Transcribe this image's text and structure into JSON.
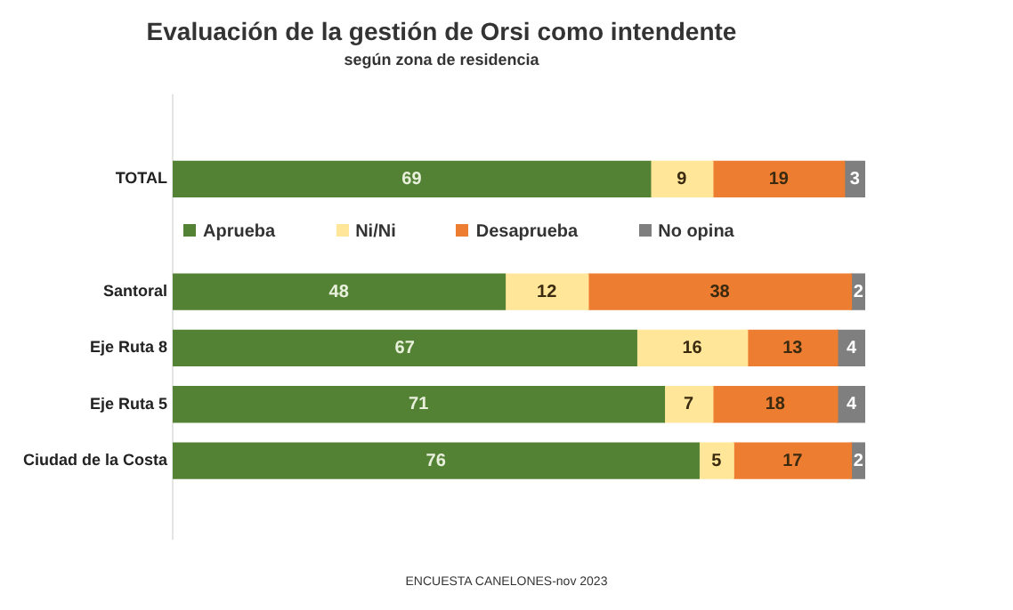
{
  "chart_data": {
    "type": "bar",
    "orientation": "horizontal",
    "stacked": true,
    "title": "Evaluación de la gestión de Orsi como intendente",
    "subtitle": "según zona de residencia",
    "categories": [
      "TOTAL",
      "Santoral",
      "Eje Ruta 8",
      "Eje Ruta 5",
      "Ciudad de la Costa"
    ],
    "series": [
      {
        "name": "Aprueba",
        "color": "#548235",
        "values": [
          69,
          48,
          67,
          71,
          76
        ]
      },
      {
        "name": "Ni/Ni",
        "color": "#ffe699",
        "values": [
          9,
          12,
          16,
          7,
          5
        ]
      },
      {
        "name": "Desaprueba",
        "color": "#ed7d31",
        "values": [
          19,
          38,
          13,
          18,
          17
        ]
      },
      {
        "name": "No opina",
        "color": "#7f7f7f",
        "values": [
          3,
          2,
          4,
          4,
          2
        ]
      }
    ],
    "xlim": [
      0,
      100
    ],
    "tick_labels": "y",
    "grid": false,
    "legend": "top",
    "data_labels": true,
    "annotations": [
      "ENCUESTA CANELONES-nov 2023"
    ]
  }
}
